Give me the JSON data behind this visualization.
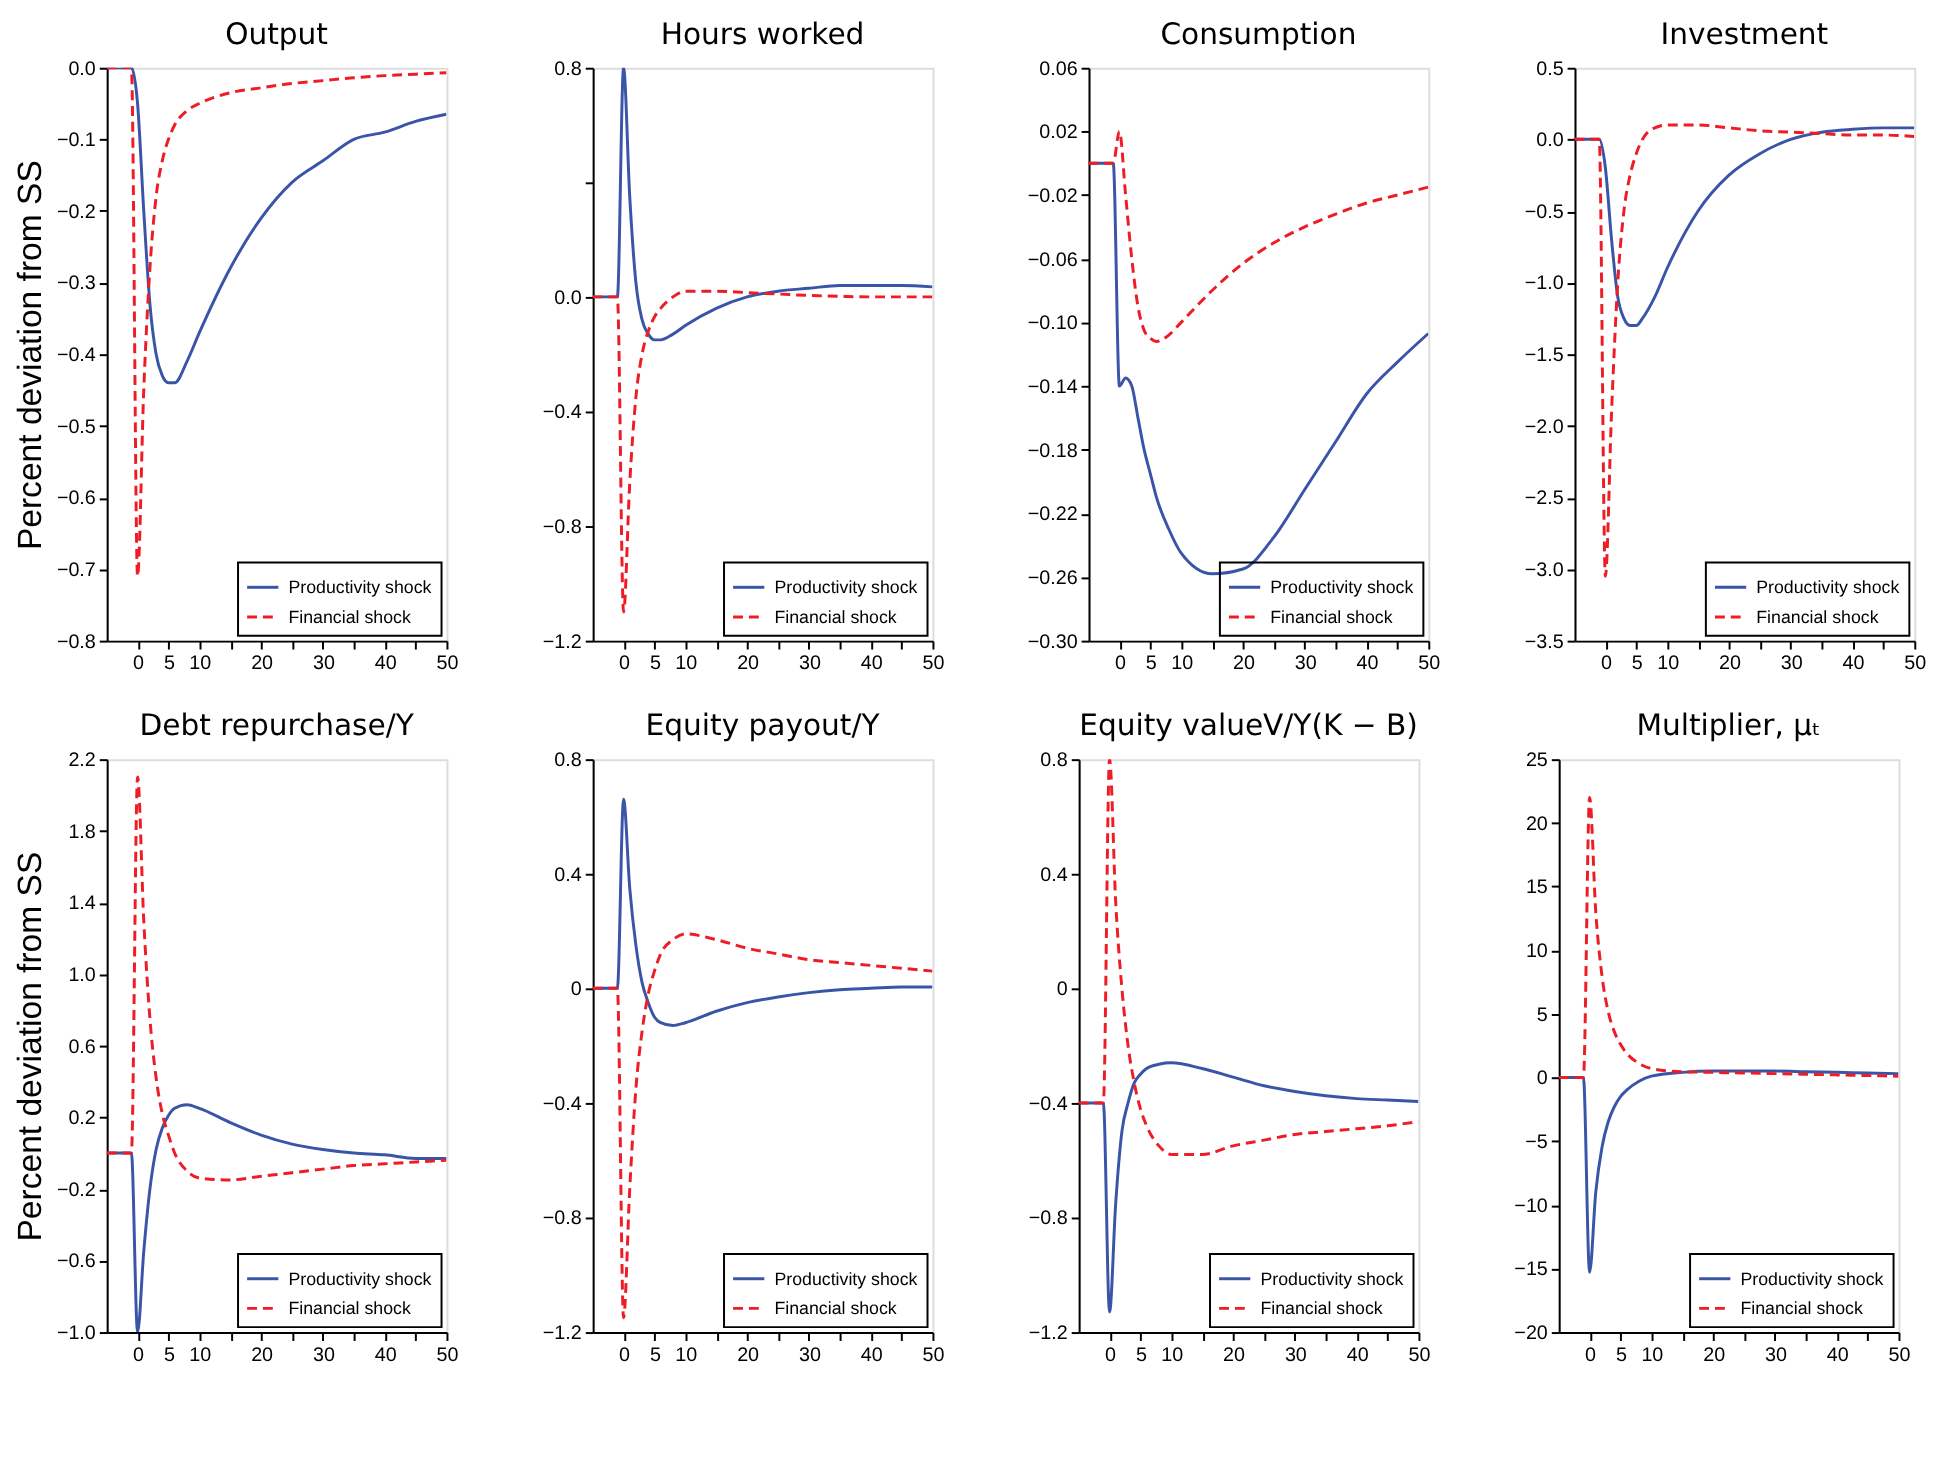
{
  "chart_data": [
    {
      "type": "line",
      "title": "Output",
      "ylabel": "Percent deviation from SS",
      "legend": "bottom right",
      "grid": false,
      "xlim": [
        -5,
        50
      ],
      "x": [
        -5,
        -1,
        0,
        1,
        2,
        3,
        4,
        5,
        6,
        8,
        10,
        15,
        20,
        25,
        30,
        35,
        40,
        45,
        50
      ],
      "xticks": [
        0,
        5,
        10,
        {
          "value": 15,
          "label": null
        },
        20,
        {
          "value": 25,
          "label": null
        },
        30,
        {
          "value": 35,
          "label": null
        },
        40,
        {
          "value": 45,
          "label": null
        },
        50
      ],
      "ylim": [
        -0.8,
        0
      ],
      "yticks": [
        {
          "value": -0.8,
          "label": "−0.8"
        },
        {
          "value": -0.7,
          "label": "−0.7"
        },
        {
          "value": -0.6,
          "label": "−0.6"
        },
        {
          "value": -0.5,
          "label": "−0.5"
        },
        {
          "value": -0.4,
          "label": "−0.4"
        },
        {
          "value": -0.3,
          "label": "−0.3"
        },
        {
          "value": -0.2,
          "label": "−0.2"
        },
        {
          "value": -0.1,
          "label": "−0.1"
        },
        {
          "value": 0,
          "label": "0.0"
        }
      ],
      "series": [
        {
          "name": "Productivity shock",
          "color": "#3a55a8",
          "line_style": "solid",
          "values": [
            0,
            0,
            -0.05,
            -0.2,
            -0.33,
            -0.4,
            -0.43,
            -0.44,
            -0.44,
            -0.41,
            -0.37,
            -0.28,
            -0.21,
            -0.16,
            -0.13,
            -0.1,
            -0.09,
            -0.075,
            -0.065
          ]
        },
        {
          "name": "Financial shock",
          "color": "#ee1c25",
          "line_style": "dashed",
          "values": [
            0,
            0,
            -0.71,
            -0.45,
            -0.28,
            -0.18,
            -0.13,
            -0.1,
            -0.08,
            -0.06,
            -0.05,
            -0.035,
            -0.028,
            -0.022,
            -0.018,
            -0.014,
            -0.011,
            -0.009,
            -0.007
          ]
        }
      ]
    },
    {
      "type": "line",
      "title": "Hours worked",
      "legend": "bottom right",
      "grid": false,
      "xlim": [
        -5,
        50
      ],
      "x": [
        -5,
        -1,
        0,
        1,
        2,
        3,
        4,
        5,
        6,
        8,
        10,
        15,
        20,
        25,
        30,
        35,
        40,
        45,
        50
      ],
      "xticks": [
        0,
        5,
        10,
        {
          "value": 15,
          "label": null
        },
        20,
        {
          "value": 25,
          "label": null
        },
        30,
        {
          "value": 35,
          "label": null
        },
        40,
        {
          "value": 45,
          "label": null
        },
        50
      ],
      "ylim": [
        -1.2,
        0.8
      ],
      "yticks": [
        {
          "value": -1.2,
          "label": "−1.2"
        },
        {
          "value": -0.8,
          "label": "−0.8"
        },
        {
          "value": -0.4,
          "label": "−0.4"
        },
        {
          "value": 0,
          "label": "0.0"
        },
        {
          "value": 0.4,
          "label": null
        },
        {
          "value": 0.8,
          "label": "0.8"
        }
      ],
      "series": [
        {
          "name": "Productivity shock",
          "color": "#3a55a8",
          "line_style": "solid",
          "values": [
            0,
            0,
            0.8,
            0.35,
            0.05,
            -0.08,
            -0.13,
            -0.15,
            -0.15,
            -0.13,
            -0.1,
            -0.04,
            0.0,
            0.02,
            0.03,
            0.04,
            0.04,
            0.04,
            0.035
          ]
        },
        {
          "name": "Financial shock",
          "color": "#ee1c25",
          "line_style": "dashed",
          "values": [
            0,
            0,
            -1.1,
            -0.65,
            -0.35,
            -0.2,
            -0.12,
            -0.07,
            -0.04,
            0.0,
            0.02,
            0.02,
            0.015,
            0.01,
            0.005,
            0.002,
            0,
            0,
            0
          ]
        }
      ]
    },
    {
      "type": "line",
      "title": "Consumption",
      "legend": "bottom right",
      "grid": false,
      "xlim": [
        -5,
        50
      ],
      "x": [
        -5,
        -1,
        0,
        1,
        2,
        3,
        4,
        5,
        6,
        8,
        10,
        15,
        20,
        25,
        30,
        35,
        40,
        45,
        50
      ],
      "xticks": [
        0,
        5,
        10,
        {
          "value": 15,
          "label": null
        },
        20,
        {
          "value": 25,
          "label": null
        },
        30,
        {
          "value": 35,
          "label": null
        },
        40,
        {
          "value": 45,
          "label": null
        },
        50
      ],
      "ylim": [
        -0.3,
        0.06
      ],
      "yticks": [
        {
          "value": -0.3,
          "label": "−0.30"
        },
        {
          "value": -0.26,
          "label": "−0.26"
        },
        {
          "value": -0.22,
          "label": "−0.22"
        },
        {
          "value": -0.18,
          "label": "−0.18"
        },
        {
          "value": -0.14,
          "label": "−0.14"
        },
        {
          "value": -0.1,
          "label": "−0.10"
        },
        {
          "value": -0.06,
          "label": "−0.06"
        },
        {
          "value": -0.02,
          "label": "−0.02"
        },
        {
          "value": 0.02,
          "label": "0.02"
        },
        {
          "value": 0.06,
          "label": "0.06"
        }
      ],
      "series": [
        {
          "name": "Productivity shock",
          "color": "#3a55a8",
          "line_style": "solid",
          "values": [
            0,
            0,
            -0.14,
            -0.135,
            -0.14,
            -0.16,
            -0.18,
            -0.195,
            -0.21,
            -0.23,
            -0.245,
            -0.258,
            -0.255,
            -0.235,
            -0.205,
            -0.175,
            -0.145,
            -0.125,
            -0.107
          ]
        },
        {
          "name": "Financial shock",
          "color": "#ee1c25",
          "line_style": "dashed",
          "values": [
            0,
            0,
            0.02,
            -0.02,
            -0.06,
            -0.09,
            -0.105,
            -0.11,
            -0.112,
            -0.108,
            -0.1,
            -0.08,
            -0.063,
            -0.05,
            -0.04,
            -0.032,
            -0.025,
            -0.02,
            -0.015
          ]
        }
      ]
    },
    {
      "type": "line",
      "title": "Investment",
      "legend": "bottom right",
      "grid": false,
      "xlim": [
        -5,
        50
      ],
      "x": [
        -5,
        -1,
        0,
        1,
        2,
        3,
        4,
        5,
        6,
        8,
        10,
        15,
        20,
        25,
        30,
        35,
        40,
        45,
        50
      ],
      "xticks": [
        0,
        5,
        10,
        {
          "value": 15,
          "label": null
        },
        20,
        {
          "value": 25,
          "label": null
        },
        30,
        {
          "value": 35,
          "label": null
        },
        40,
        {
          "value": 45,
          "label": null
        },
        50
      ],
      "ylim": [
        -3.5,
        0.5
      ],
      "yticks": [
        {
          "value": -3.5,
          "label": "−3.5"
        },
        {
          "value": -3.0,
          "label": "−3.0"
        },
        {
          "value": -2.5,
          "label": "−2.5"
        },
        {
          "value": -2.0,
          "label": "−2.0"
        },
        {
          "value": -1.5,
          "label": "−1.5"
        },
        {
          "value": -1.0,
          "label": "−1.0"
        },
        {
          "value": -0.5,
          "label": "−0.5"
        },
        {
          "value": 0,
          "label": "0.0"
        },
        {
          "value": 0.5,
          "label": "0.5"
        }
      ],
      "series": [
        {
          "name": "Productivity shock",
          "color": "#3a55a8",
          "line_style": "solid",
          "values": [
            0,
            0,
            -0.2,
            -0.7,
            -1.1,
            -1.25,
            -1.3,
            -1.3,
            -1.25,
            -1.1,
            -0.9,
            -0.5,
            -0.25,
            -0.1,
            0.0,
            0.05,
            0.07,
            0.08,
            0.08
          ]
        },
        {
          "name": "Financial shock",
          "color": "#ee1c25",
          "line_style": "dashed",
          "values": [
            0,
            0,
            -3.05,
            -1.9,
            -1.0,
            -0.5,
            -0.25,
            -0.1,
            0.0,
            0.08,
            0.1,
            0.1,
            0.08,
            0.06,
            0.05,
            0.04,
            0.03,
            0.03,
            0.02
          ]
        }
      ]
    },
    {
      "type": "line",
      "title": "Debt repurchase/Y",
      "ylabel": "Percent deviation from SS",
      "legend": "bottom right",
      "grid": false,
      "xlim": [
        -5,
        50
      ],
      "x": [
        -5,
        -1,
        0,
        1,
        2,
        3,
        4,
        5,
        6,
        8,
        10,
        15,
        20,
        25,
        30,
        35,
        40,
        45,
        50
      ],
      "xticks": [
        0,
        5,
        10,
        {
          "value": 15,
          "label": null
        },
        20,
        {
          "value": 25,
          "label": null
        },
        30,
        {
          "value": 35,
          "label": null
        },
        40,
        {
          "value": 45,
          "label": null
        },
        50
      ],
      "ylim": [
        -1.0,
        2.2
      ],
      "yticks": [
        {
          "value": -1.0,
          "label": "−1.0"
        },
        {
          "value": -0.6,
          "label": "−0.6"
        },
        {
          "value": -0.2,
          "label": "−0.2"
        },
        {
          "value": 0.2,
          "label": "0.2"
        },
        {
          "value": 0.6,
          "label": "0.6"
        },
        {
          "value": 1.0,
          "label": "1.0"
        },
        {
          "value": 1.4,
          "label": "1.4"
        },
        {
          "value": 1.8,
          "label": "1.8"
        },
        {
          "value": 2.2,
          "label": "2.2"
        }
      ],
      "series": [
        {
          "name": "Productivity shock",
          "color": "#3a55a8",
          "line_style": "solid",
          "values": [
            0,
            0,
            -1.0,
            -0.55,
            -0.2,
            0.02,
            0.14,
            0.21,
            0.25,
            0.27,
            0.25,
            0.17,
            0.1,
            0.05,
            0.02,
            0.0,
            -0.01,
            -0.03,
            -0.03
          ]
        },
        {
          "name": "Financial shock",
          "color": "#ee1c25",
          "line_style": "dashed",
          "values": [
            0,
            0,
            2.1,
            1.3,
            0.75,
            0.42,
            0.22,
            0.1,
            0.0,
            -0.1,
            -0.14,
            -0.15,
            -0.13,
            -0.11,
            -0.09,
            -0.07,
            -0.06,
            -0.05,
            -0.04
          ]
        }
      ]
    },
    {
      "type": "line",
      "title": "Equity payout/Y",
      "legend": "bottom right",
      "grid": false,
      "xlim": [
        -5,
        50
      ],
      "x": [
        -5,
        -1,
        0,
        1,
        2,
        3,
        4,
        5,
        6,
        8,
        10,
        15,
        20,
        25,
        30,
        35,
        40,
        45,
        50
      ],
      "xticks": [
        0,
        5,
        10,
        {
          "value": 15,
          "label": null
        },
        20,
        {
          "value": 25,
          "label": null
        },
        30,
        {
          "value": 35,
          "label": null
        },
        40,
        {
          "value": 45,
          "label": null
        },
        50
      ],
      "ylim": [
        -1.2,
        0.8
      ],
      "yticks": [
        {
          "value": -1.2,
          "label": "−1.2"
        },
        {
          "value": -0.8,
          "label": "−0.8"
        },
        {
          "value": -0.4,
          "label": "−0.4"
        },
        0,
        0.4,
        0.8
      ],
      "series": [
        {
          "name": "Productivity shock",
          "color": "#3a55a8",
          "line_style": "solid",
          "values": [
            0,
            0,
            0.66,
            0.35,
            0.15,
            0.02,
            -0.05,
            -0.1,
            -0.12,
            -0.13,
            -0.12,
            -0.08,
            -0.05,
            -0.03,
            -0.015,
            -0.005,
            0.0,
            0.005,
            0.005
          ]
        },
        {
          "name": "Financial shock",
          "color": "#ee1c25",
          "line_style": "dashed",
          "values": [
            0,
            0,
            -1.15,
            -0.7,
            -0.35,
            -0.15,
            -0.02,
            0.06,
            0.12,
            0.17,
            0.19,
            0.17,
            0.14,
            0.12,
            0.1,
            0.09,
            0.08,
            0.07,
            0.06
          ]
        }
      ]
    },
    {
      "type": "line",
      "title": "Equity valueV/Y(K − B)",
      "legend": "bottom right",
      "grid": false,
      "xlim": [
        -5,
        50
      ],
      "x": [
        -5,
        -1,
        0,
        1,
        2,
        3,
        4,
        5,
        6,
        8,
        10,
        15,
        20,
        25,
        30,
        35,
        40,
        45,
        50
      ],
      "xticks": [
        0,
        5,
        10,
        {
          "value": 15,
          "label": null
        },
        20,
        {
          "value": 25,
          "label": null
        },
        30,
        {
          "value": 35,
          "label": null
        },
        40,
        {
          "value": 45,
          "label": null
        },
        50
      ],
      "ylim": [
        -1.2,
        0.8
      ],
      "yticks": [
        {
          "value": -1.2,
          "label": "−1.2"
        },
        {
          "value": -0.8,
          "label": "−0.8"
        },
        {
          "value": -0.4,
          "label": "−0.4"
        },
        0,
        0.4,
        0.8
      ],
      "series": [
        {
          "name": "Productivity shock",
          "color": "#3a55a8",
          "line_style": "solid",
          "values": [
            -0.4,
            -0.4,
            -1.13,
            -0.75,
            -0.5,
            -0.4,
            -0.33,
            -0.3,
            -0.28,
            -0.265,
            -0.26,
            -0.28,
            -0.31,
            -0.34,
            -0.36,
            -0.375,
            -0.385,
            -0.39,
            -0.395
          ]
        },
        {
          "name": "Financial shock",
          "color": "#ee1c25",
          "line_style": "dashed",
          "values": [
            -0.4,
            -0.4,
            0.8,
            0.3,
            0.0,
            -0.2,
            -0.33,
            -0.42,
            -0.48,
            -0.55,
            -0.58,
            -0.58,
            -0.55,
            -0.53,
            -0.51,
            -0.5,
            -0.49,
            -0.48,
            -0.465
          ]
        }
      ]
    },
    {
      "type": "line",
      "title": "Multiplier, μₜ",
      "legend": "bottom right",
      "grid": false,
      "xlim": [
        -5,
        50
      ],
      "x": [
        -5,
        -1,
        0,
        1,
        2,
        3,
        4,
        5,
        6,
        8,
        10,
        15,
        20,
        25,
        30,
        35,
        40,
        45,
        50
      ],
      "xticks": [
        0,
        5,
        10,
        {
          "value": 15,
          "label": null
        },
        20,
        {
          "value": 25,
          "label": null
        },
        30,
        {
          "value": 35,
          "label": null
        },
        40,
        {
          "value": 45,
          "label": null
        },
        50
      ],
      "ylim": [
        -20,
        25
      ],
      "yticks": [
        {
          "value": -20,
          "label": "−20"
        },
        {
          "value": -15,
          "label": "−15"
        },
        {
          "value": -10,
          "label": "−10"
        },
        {
          "value": -5,
          "label": "−5"
        },
        0,
        5,
        10,
        15,
        20,
        25
      ],
      "series": [
        {
          "name": "Productivity shock",
          "color": "#3a55a8",
          "line_style": "solid",
          "values": [
            0,
            0,
            -15.3,
            -9,
            -5.5,
            -3.5,
            -2.3,
            -1.5,
            -1,
            -0.3,
            0.1,
            0.4,
            0.5,
            0.5,
            0.5,
            0.45,
            0.4,
            0.35,
            0.3
          ]
        },
        {
          "name": "Financial shock",
          "color": "#ee1c25",
          "line_style": "dashed",
          "values": [
            0,
            0,
            22,
            13,
            8,
            5.2,
            3.6,
            2.6,
            1.9,
            1.1,
            0.7,
            0.45,
            0.4,
            0.35,
            0.3,
            0.25,
            0.2,
            0.15,
            0.1
          ]
        }
      ]
    }
  ]
}
